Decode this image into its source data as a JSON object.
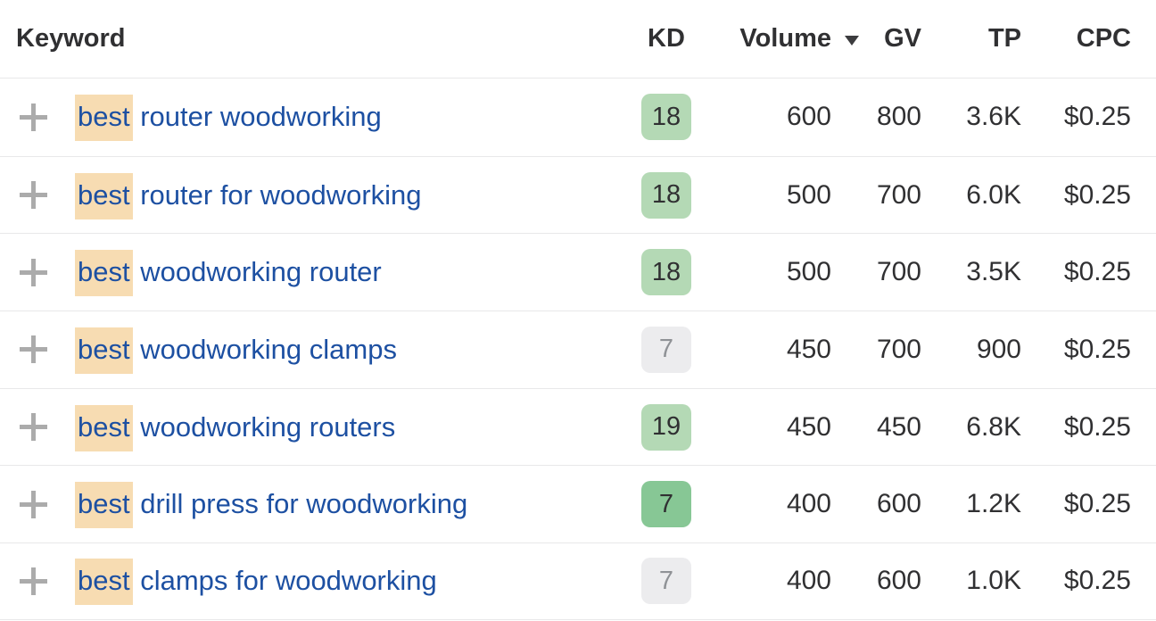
{
  "header": {
    "columns": {
      "keyword": "Keyword",
      "kd": "KD",
      "volume": "Volume",
      "gv": "GV",
      "tp": "TP",
      "cpc": "CPC"
    },
    "sort": {
      "column": "volume",
      "direction": "desc"
    }
  },
  "rows": [
    {
      "highlight": "best",
      "rest": " router woodworking",
      "kd": "18",
      "kd_style": "green-light",
      "volume": "600",
      "gv": "800",
      "tp": "3.6K",
      "cpc": "$0.25"
    },
    {
      "highlight": "best",
      "rest": " router for woodworking",
      "kd": "18",
      "kd_style": "green-light",
      "volume": "500",
      "gv": "700",
      "tp": "6.0K",
      "cpc": "$0.25"
    },
    {
      "highlight": "best",
      "rest": " woodworking router",
      "kd": "18",
      "kd_style": "green-light",
      "volume": "500",
      "gv": "700",
      "tp": "3.5K",
      "cpc": "$0.25"
    },
    {
      "highlight": "best",
      "rest": " woodworking clamps",
      "kd": "7",
      "kd_style": "gray",
      "volume": "450",
      "gv": "700",
      "tp": "900",
      "cpc": "$0.25"
    },
    {
      "highlight": "best",
      "rest": " woodworking routers",
      "kd": "19",
      "kd_style": "green-light",
      "volume": "450",
      "gv": "450",
      "tp": "6.8K",
      "cpc": "$0.25"
    },
    {
      "highlight": "best",
      "rest": " drill press for woodworking",
      "kd": "7",
      "kd_style": "green-medium",
      "volume": "400",
      "gv": "600",
      "tp": "1.2K",
      "cpc": "$0.25"
    },
    {
      "highlight": "best",
      "rest": " clamps for woodworking",
      "kd": "7",
      "kd_style": "gray",
      "volume": "400",
      "gv": "600",
      "tp": "1.0K",
      "cpc": "$0.25"
    }
  ],
  "icons": {
    "sort": "sort-desc-triangle",
    "add": "plus-icon"
  },
  "colors": {
    "text": "#303032",
    "keyword_link": "#1d50a2",
    "keyword_highlight": "#f7dcb2",
    "kd_green_light": "#b4d9b5",
    "kd_green_medium": "#87c795",
    "kd_gray_bg": "#ececee",
    "kd_gray_text": "#8f9296",
    "row_border": "#e8e8e9",
    "plus_icon": "#ababab"
  }
}
